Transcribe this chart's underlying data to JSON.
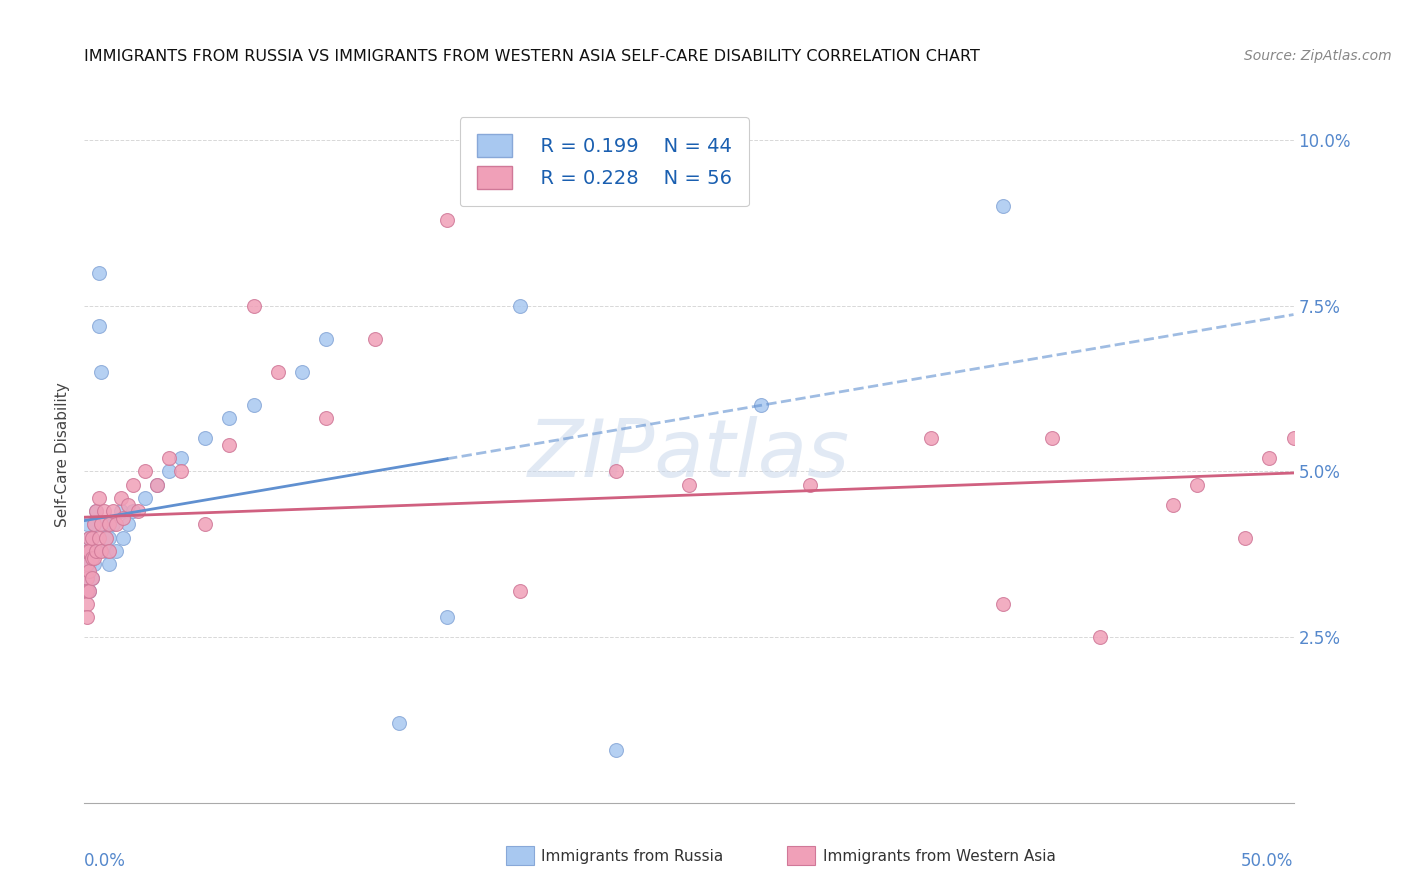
{
  "title": "IMMIGRANTS FROM RUSSIA VS IMMIGRANTS FROM WESTERN ASIA SELF-CARE DISABILITY CORRELATION CHART",
  "source": "Source: ZipAtlas.com",
  "ylabel": "Self-Care Disability",
  "legend_R1": "R = 0.199",
  "legend_N1": "N = 44",
  "legend_R2": "R = 0.228",
  "legend_N2": "N = 56",
  "legend_label1": "Immigrants from Russia",
  "legend_label2": "Immigrants from Western Asia",
  "xmin": 0.0,
  "xmax": 0.5,
  "ymin": 0.0,
  "ymax": 0.105,
  "yticks": [
    0.025,
    0.05,
    0.075,
    0.1
  ],
  "ytick_labels": [
    "2.5%",
    "5.0%",
    "7.5%",
    "10.0%"
  ],
  "color_russia": "#a8c8f0",
  "color_russia_edge": "#88a8d8",
  "color_western_asia": "#f0a0b8",
  "color_western_asia_edge": "#d07898",
  "color_trend_russia": "#6090d0",
  "color_trend_western_asia": "#d06080",
  "russia_x": [
    0.001,
    0.001,
    0.001,
    0.001,
    0.001,
    0.002,
    0.002,
    0.002,
    0.002,
    0.003,
    0.003,
    0.003,
    0.004,
    0.004,
    0.005,
    0.005,
    0.006,
    0.006,
    0.007,
    0.008,
    0.009,
    0.01,
    0.01,
    0.012,
    0.013,
    0.015,
    0.016,
    0.018,
    0.02,
    0.025,
    0.03,
    0.035,
    0.04,
    0.05,
    0.06,
    0.07,
    0.09,
    0.1,
    0.13,
    0.15,
    0.18,
    0.22,
    0.28,
    0.38
  ],
  "russia_y": [
    0.042,
    0.038,
    0.036,
    0.034,
    0.032,
    0.04,
    0.038,
    0.036,
    0.032,
    0.04,
    0.038,
    0.034,
    0.042,
    0.036,
    0.044,
    0.038,
    0.08,
    0.072,
    0.065,
    0.042,
    0.038,
    0.04,
    0.036,
    0.042,
    0.038,
    0.044,
    0.04,
    0.042,
    0.044,
    0.046,
    0.048,
    0.05,
    0.052,
    0.055,
    0.058,
    0.06,
    0.065,
    0.07,
    0.012,
    0.028,
    0.075,
    0.008,
    0.06,
    0.09
  ],
  "western_asia_x": [
    0.001,
    0.001,
    0.001,
    0.001,
    0.001,
    0.001,
    0.002,
    0.002,
    0.002,
    0.002,
    0.003,
    0.003,
    0.003,
    0.004,
    0.004,
    0.005,
    0.005,
    0.006,
    0.006,
    0.007,
    0.007,
    0.008,
    0.009,
    0.01,
    0.01,
    0.012,
    0.013,
    0.015,
    0.016,
    0.018,
    0.02,
    0.022,
    0.025,
    0.03,
    0.035,
    0.04,
    0.05,
    0.06,
    0.07,
    0.08,
    0.1,
    0.12,
    0.15,
    0.18,
    0.22,
    0.25,
    0.3,
    0.35,
    0.38,
    0.4,
    0.42,
    0.45,
    0.46,
    0.48,
    0.49,
    0.5
  ],
  "western_asia_y": [
    0.038,
    0.036,
    0.034,
    0.032,
    0.03,
    0.028,
    0.04,
    0.038,
    0.035,
    0.032,
    0.04,
    0.037,
    0.034,
    0.042,
    0.037,
    0.044,
    0.038,
    0.046,
    0.04,
    0.042,
    0.038,
    0.044,
    0.04,
    0.042,
    0.038,
    0.044,
    0.042,
    0.046,
    0.043,
    0.045,
    0.048,
    0.044,
    0.05,
    0.048,
    0.052,
    0.05,
    0.042,
    0.054,
    0.075,
    0.065,
    0.058,
    0.07,
    0.088,
    0.032,
    0.05,
    0.048,
    0.048,
    0.055,
    0.03,
    0.055,
    0.025,
    0.045,
    0.048,
    0.04,
    0.052,
    0.055
  ]
}
